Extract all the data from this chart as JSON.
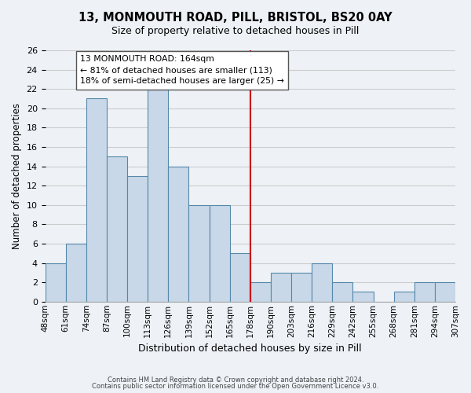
{
  "title": "13, MONMOUTH ROAD, PILL, BRISTOL, BS20 0AY",
  "subtitle": "Size of property relative to detached houses in Pill",
  "xlabel": "Distribution of detached houses by size in Pill",
  "ylabel": "Number of detached properties",
  "footnote1": "Contains HM Land Registry data © Crown copyright and database right 2024.",
  "footnote2": "Contains public sector information licensed under the Open Government Licence v3.0.",
  "bin_edges": [
    "48sqm",
    "61sqm",
    "74sqm",
    "87sqm",
    "100sqm",
    "113sqm",
    "126sqm",
    "139sqm",
    "152sqm",
    "165sqm",
    "178sqm",
    "190sqm",
    "203sqm",
    "216sqm",
    "229sqm",
    "242sqm",
    "255sqm",
    "268sqm",
    "281sqm",
    "294sqm",
    "307sqm"
  ],
  "bar_heights": [
    4,
    6,
    21,
    15,
    13,
    22,
    14,
    10,
    10,
    5,
    2,
    3,
    3,
    4,
    2,
    1,
    0,
    1,
    2,
    2
  ],
  "bar_color": "#c8d8e8",
  "bar_edge_color": "#5588aa",
  "grid_color": "#cccccc",
  "vline_x": 9.5,
  "vline_color": "#cc0000",
  "annotation_line1": "13 MONMOUTH ROAD: 164sqm",
  "annotation_line2": "← 81% of detached houses are smaller (113)",
  "annotation_line3": "18% of semi-detached houses are larger (25) →",
  "annotation_box_color": "#ffffff",
  "annotation_box_edge": "#555555",
  "ylim": [
    0,
    26
  ],
  "yticks": [
    0,
    2,
    4,
    6,
    8,
    10,
    12,
    14,
    16,
    18,
    20,
    22,
    24,
    26
  ],
  "bg_color": "#eef2f7"
}
